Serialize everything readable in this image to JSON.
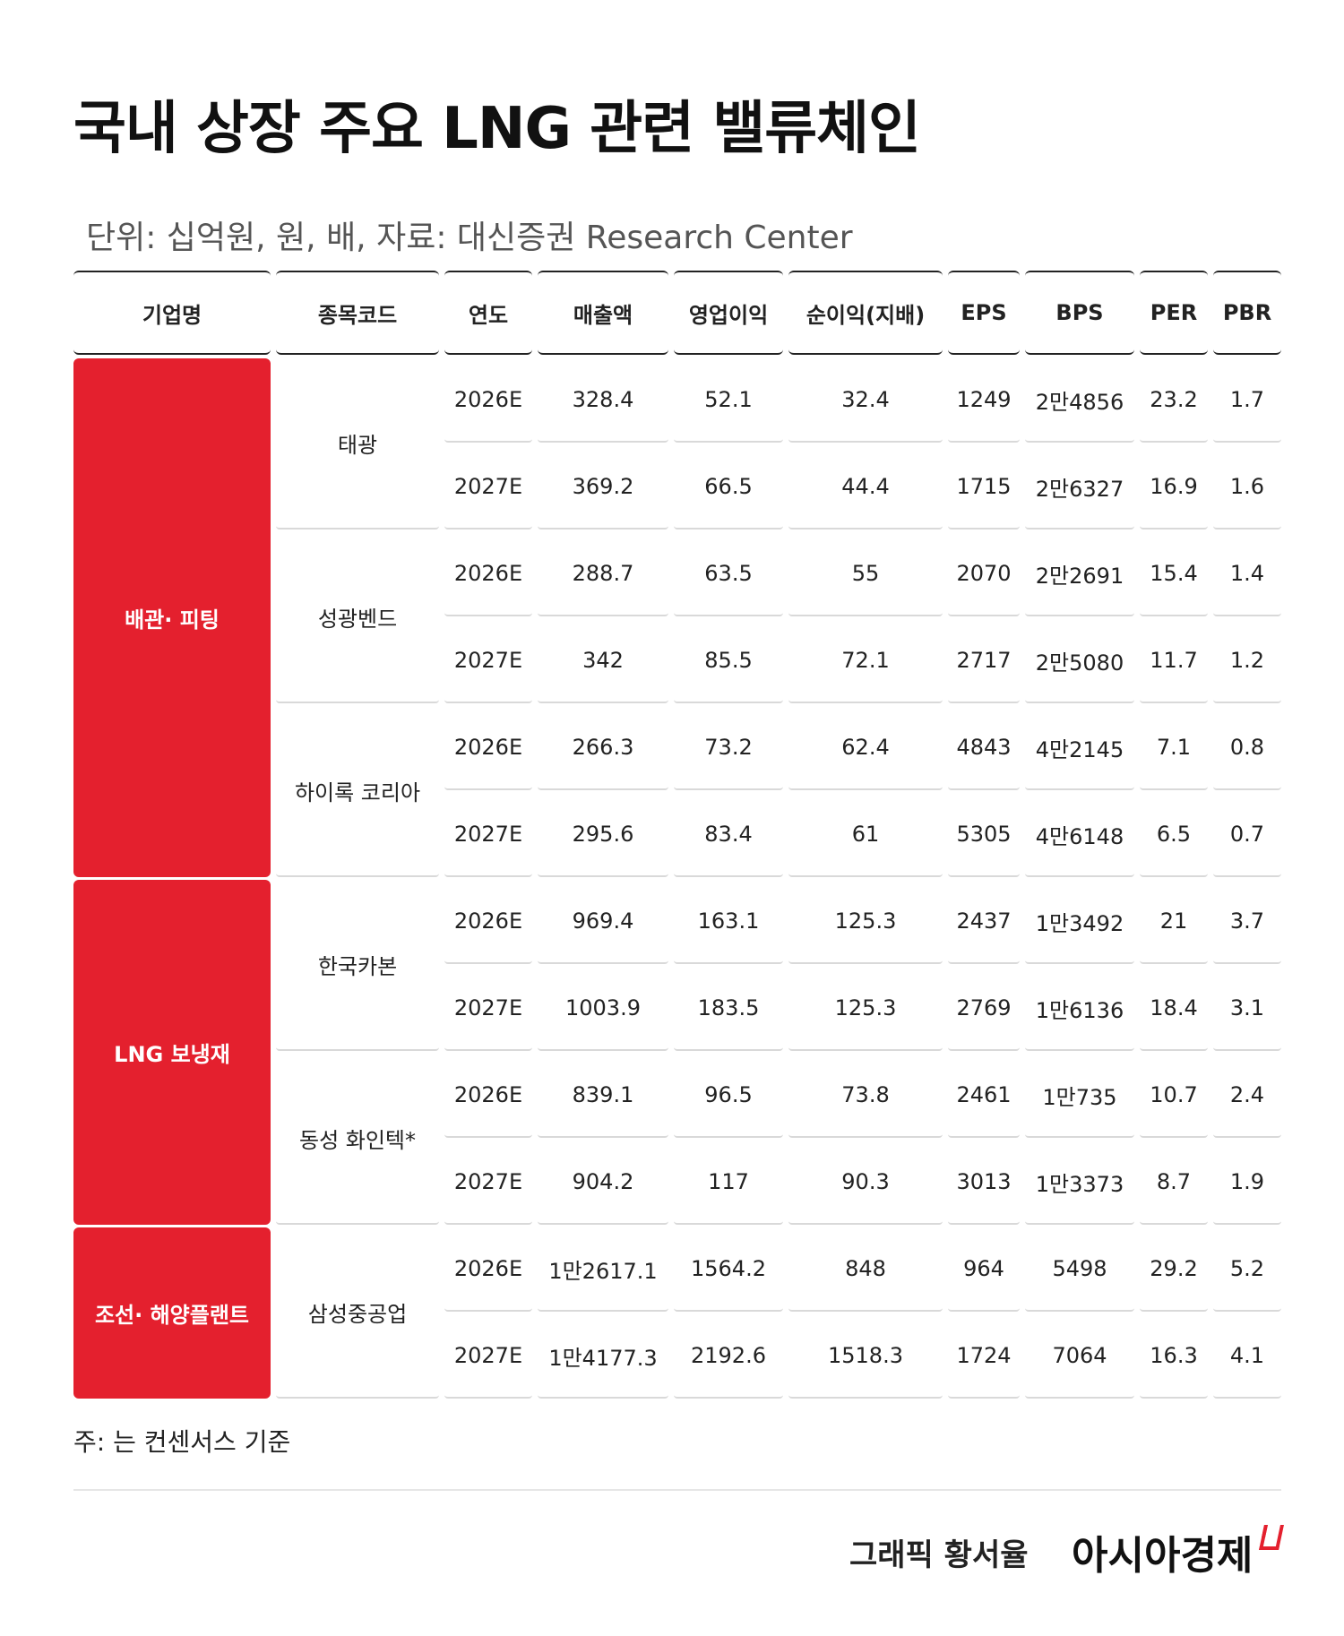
{
  "title": "국내 상장 주요 LNG 관련 밸류체인",
  "subtitle": "단위: 십억원, 원, 배, 자료: 대신증권 Research Center",
  "table": {
    "headers": [
      "기업명",
      "종목코드",
      "연도",
      "매출액",
      "영업이익",
      "순이익(지배)",
      "EPS",
      "BPS",
      "PER",
      "PBR"
    ],
    "groups": [
      {
        "name": "배관· 피팅",
        "companies": [
          {
            "name": "태광",
            "rows": [
              {
                "year": "2026E",
                "values": [
                  "328.4",
                  "52.1",
                  "32.4",
                  "1249",
                  "2만4856",
                  "23.2",
                  "1.7"
                ]
              },
              {
                "year": "2027E",
                "values": [
                  "369.2",
                  "66.5",
                  "44.4",
                  "1715",
                  "2만6327",
                  "16.9",
                  "1.6"
                ]
              }
            ]
          },
          {
            "name": "성광벤드",
            "rows": [
              {
                "year": "2026E",
                "values": [
                  "288.7",
                  "63.5",
                  "55",
                  "2070",
                  "2만2691",
                  "15.4",
                  "1.4"
                ]
              },
              {
                "year": "2027E",
                "values": [
                  "342",
                  "85.5",
                  "72.1",
                  "2717",
                  "2만5080",
                  "11.7",
                  "1.2"
                ]
              }
            ]
          },
          {
            "name": "하이록 코리아",
            "rows": [
              {
                "year": "2026E",
                "values": [
                  "266.3",
                  "73.2",
                  "62.4",
                  "4843",
                  "4만2145",
                  "7.1",
                  "0.8"
                ]
              },
              {
                "year": "2027E",
                "values": [
                  "295.6",
                  "83.4",
                  "61",
                  "5305",
                  "4만6148",
                  "6.5",
                  "0.7"
                ]
              }
            ]
          }
        ]
      },
      {
        "name": "LNG 보냉재",
        "companies": [
          {
            "name": "한국카본",
            "rows": [
              {
                "year": "2026E",
                "values": [
                  "969.4",
                  "163.1",
                  "125.3",
                  "2437",
                  "1만3492",
                  "21",
                  "3.7"
                ]
              },
              {
                "year": "2027E",
                "values": [
                  "1003.9",
                  "183.5",
                  "125.3",
                  "2769",
                  "1만6136",
                  "18.4",
                  "3.1"
                ]
              }
            ]
          },
          {
            "name": "동성 화인텍*",
            "rows": [
              {
                "year": "2026E",
                "values": [
                  "839.1",
                  "96.5",
                  "73.8",
                  "2461",
                  "1만735",
                  "10.7",
                  "2.4"
                ]
              },
              {
                "year": "2027E",
                "values": [
                  "904.2",
                  "117",
                  "90.3",
                  "3013",
                  "1만3373",
                  "8.7",
                  "1.9"
                ]
              }
            ]
          }
        ]
      },
      {
        "name": "조선· 해양플랜트",
        "companies": [
          {
            "name": "삼성중공업",
            "rows": [
              {
                "year": "2026E",
                "values": [
                  "1만2617.1",
                  "1564.2",
                  "848",
                  "964",
                  "5498",
                  "29.2",
                  "5.2"
                ]
              },
              {
                "year": "2027E",
                "values": [
                  "1만4177.3",
                  "2192.6",
                  "1518.3",
                  "1724",
                  "7064",
                  "16.3",
                  "4.1"
                ]
              }
            ]
          }
        ]
      }
    ]
  },
  "note": "주: 는 컨센서스 기준",
  "credit": "그래픽 황서율",
  "brand": "아시아경제",
  "colors": {
    "accent": "#e4202e",
    "header_border": "#222222",
    "row_border": "#d9d9d9"
  }
}
